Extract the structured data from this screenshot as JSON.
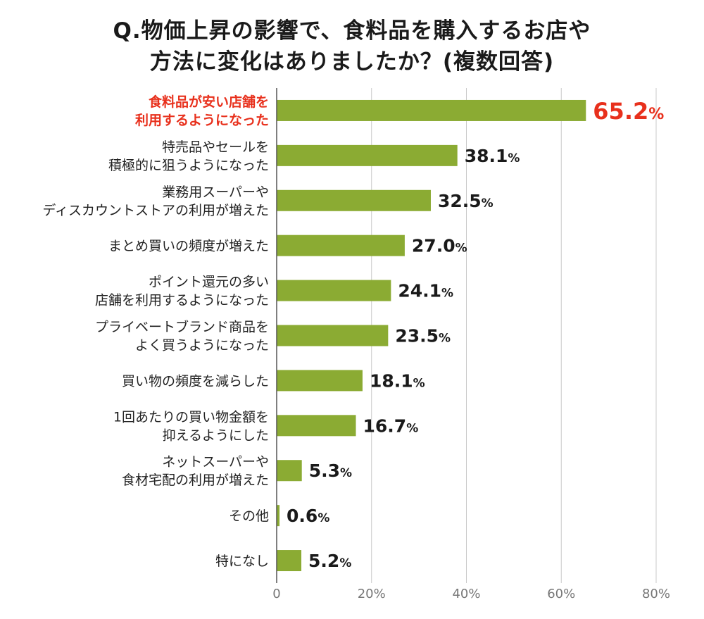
{
  "chart_data": {
    "type": "bar",
    "orientation": "horizontal",
    "title_line1": "Q.物価上昇の影響で、食料品を購入するお店や",
    "title_line2": "方法に変化はありましたか？(複数回答)",
    "categories": [
      [
        "食料品が安い店舗を",
        "利用するようになった"
      ],
      [
        "特売品やセールを",
        "積極的に狙うようになった"
      ],
      [
        "業務用スーパーや",
        "ディスカウントストアの利用が増えた"
      ],
      [
        "まとめ買いの頻度が増えた"
      ],
      [
        "ポイント還元の多い",
        "店舗を利用するようになった"
      ],
      [
        "プライベートブランド商品を",
        "よく買うようになった"
      ],
      [
        "買い物の頻度を減らした"
      ],
      [
        "1回あたりの買い物金額を",
        "抑えるようにした"
      ],
      [
        "ネットスーパーや",
        "食材宅配の利用が増えた"
      ],
      [
        "その他"
      ],
      [
        "特になし"
      ]
    ],
    "values": [
      65.2,
      38.1,
      32.5,
      27.0,
      24.1,
      23.5,
      18.1,
      16.7,
      5.3,
      0.6,
      5.2
    ],
    "value_labels": [
      "65.2",
      "38.1",
      "32.5",
      "27.0",
      "24.1",
      "23.5",
      "18.1",
      "16.7",
      "5.3",
      "0.6",
      "5.2"
    ],
    "value_unit": "%",
    "highlight_index": 0,
    "x_ticks": [
      "0",
      "20%",
      "40%",
      "60%",
      "80%"
    ],
    "x_tick_values": [
      0,
      20,
      40,
      60,
      80
    ],
    "xlim": [
      0,
      80
    ],
    "grid": true,
    "colors": {
      "bar": "#8bab33",
      "highlight_text": "#e8301c",
      "grid": "#c8c8c8",
      "axis": "#555555"
    }
  }
}
